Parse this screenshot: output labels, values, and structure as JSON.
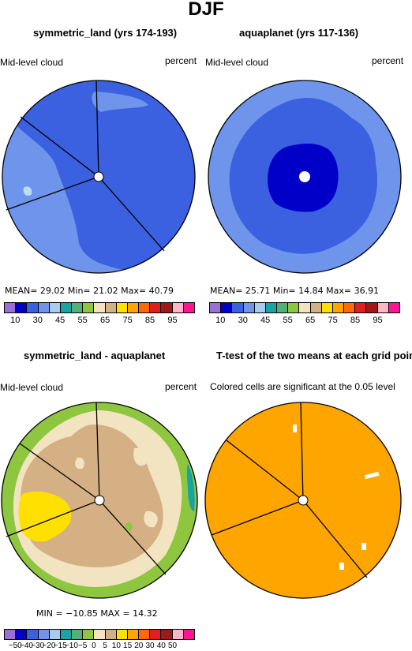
{
  "title": "DJF",
  "colors": {
    "outer_ring": "#6f94ec",
    "mid_blue": "#3b60e0",
    "dark_blue": "#0000c8",
    "light_patch": "#b6e0f4",
    "diff_green": "#8ec63f",
    "diff_cream": "#f2e4c0",
    "diff_tan": "#d4b084",
    "diff_yellow": "#ffe000",
    "diff_teal": "#1aa3a3",
    "ttest_orange": "#ffa500"
  },
  "panels": {
    "p1": {
      "title": "symmetric_land (yrs 174-193)",
      "left_label": "Mid-level cloud",
      "right_label": "percent",
      "stats": "MEAN=   29.02   Min=   21.02   Max=   40.79"
    },
    "p2": {
      "title": "aquaplanet (yrs 117-136)",
      "left_label": "Mid-level cloud",
      "right_label": "percent",
      "stats": "MEAN=   25.71   Min=   14.84   Max=   36.91"
    },
    "p3": {
      "title": "symmetric_land - aquaplanet",
      "left_label": "Mid-level cloud",
      "right_label": "percent",
      "stats": "MIN = −10.85  MAX =   14.32"
    },
    "p4": {
      "title": "T-test of the two means at each grid point",
      "subtitle": "Colored cells are significant at the 0.05 level"
    }
  },
  "colorbar_top": {
    "colors": [
      "#9a6fd8",
      "#0000c8",
      "#3b60e0",
      "#6f94ec",
      "#a6ccf0",
      "#1aa3a3",
      "#4fb07a",
      "#8ec63f",
      "#f2e4c0",
      "#d4b084",
      "#ffe000",
      "#ffa500",
      "#ff6a00",
      "#e01e1e",
      "#a01818",
      "#ffb6c8",
      "#ff1493"
    ],
    "labels": [
      "10",
      "30",
      "45",
      "55",
      "65",
      "75",
      "85",
      "95"
    ]
  },
  "colorbar_diff": {
    "colors": [
      "#9a6fd8",
      "#0000c8",
      "#3b60e0",
      "#6f94ec",
      "#a6ccf0",
      "#1aa3a3",
      "#4fb07a",
      "#8ec63f",
      "#f2e4c0",
      "#d4b084",
      "#ffe000",
      "#ffa500",
      "#ff6a00",
      "#e01e1e",
      "#a01818",
      "#ffb6c8",
      "#ff1493"
    ],
    "labels": [
      "−50",
      "−40",
      "−30",
      "−20",
      "−15",
      "−10",
      "−5",
      "0",
      "5",
      "10",
      "15",
      "20",
      "30",
      "40",
      "50"
    ]
  }
}
